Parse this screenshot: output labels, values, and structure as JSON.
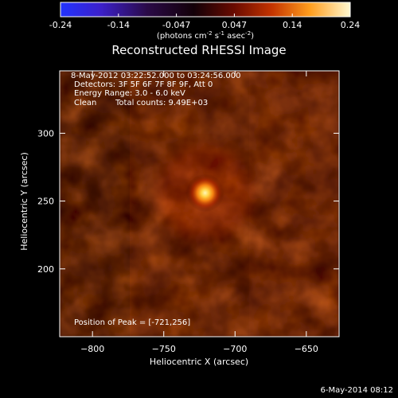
{
  "app": {
    "title": "Reconstructed RHESSI Image",
    "timestamp_footer": "6-May-2014 08:12"
  },
  "colorbar": {
    "tick_labels": [
      "-0.24",
      "-0.14",
      "-0.047",
      "0.047",
      "0.14",
      "0.24"
    ],
    "units_prefix": "(photons cm",
    "units_exp1": "-2",
    "units_mid": " s",
    "units_exp2": "-1",
    "units_after": " asec",
    "units_exp3": "-2",
    "units_end": ")"
  },
  "annotations": {
    "time_range": "8-May-2012 03:22:52.000 to 03:24:56.000",
    "detectors": "Detectors: 3F 5F 6F 7F 8F 9F, Att 0",
    "energy_range": "Energy Range: 3.0 - 6.0 keV",
    "method": "Clean",
    "total_counts": "Total counts: 9.49E+03",
    "peak_position": "Position of Peak = [-721,256]"
  },
  "chart_data": {
    "type": "heatmap",
    "title": "Reconstructed RHESSI Image",
    "xlabel": "Heliocentric X (arcsec)",
    "ylabel": "Heliocentric Y (arcsec)",
    "xlim": [
      -823,
      -627
    ],
    "ylim": [
      150,
      346
    ],
    "x_ticks": [
      -800,
      -750,
      -700,
      -650
    ],
    "x_tick_labels": [
      "−800",
      "−750",
      "−700",
      "−650"
    ],
    "y_ticks": [
      200,
      250,
      300
    ],
    "y_tick_labels": [
      "200",
      "250",
      "300"
    ],
    "colorbar_range": [
      -0.24,
      0.24
    ],
    "colormap": "red-temperature",
    "peak": {
      "x": -721,
      "y": 256
    },
    "grid": false
  },
  "colors": {
    "background": "#000000",
    "foreground": "#ffffff",
    "peak_core": "#fff2a6",
    "mid_red": "#8a1f08",
    "low_red": "#3a0a00"
  }
}
